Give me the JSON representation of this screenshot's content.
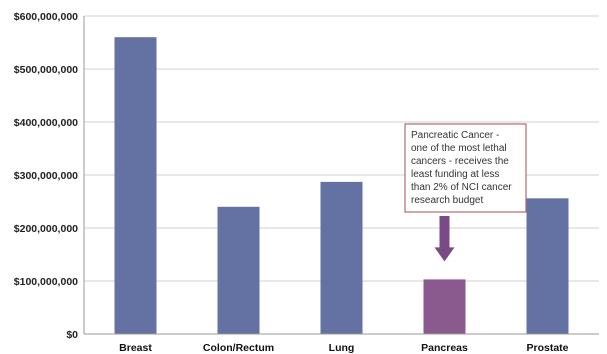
{
  "chart_data": {
    "type": "bar",
    "categories": [
      "Breast",
      "Colon/Rectum",
      "Lung",
      "Pancreas",
      "Prostate"
    ],
    "values": [
      560000000,
      240000000,
      287000000,
      103000000,
      256000000
    ],
    "ylim": [
      0,
      600000000
    ],
    "y_ticks": [
      0,
      100000000,
      200000000,
      300000000,
      400000000,
      500000000,
      600000000
    ],
    "y_tick_labels": [
      "$0",
      "$100,000,000",
      "$200,000,000",
      "$300,000,000",
      "$400,000,000",
      "$500,000,000",
      "$600,000,000"
    ],
    "grid": true,
    "bar_colors": [
      "#6371a3",
      "#6371a3",
      "#6371a3",
      "#8a5a8f",
      "#6371a3"
    ],
    "annotation": {
      "lines": [
        "Pancreatic Cancer  -",
        "one of the most lethal",
        "cancers -  receives the",
        "least funding at less",
        "than 2% of NCI cancer",
        "research budget"
      ],
      "target_category": "Pancreas",
      "border_color": "#b06a72",
      "arrow_color": "#7a4a86"
    }
  }
}
